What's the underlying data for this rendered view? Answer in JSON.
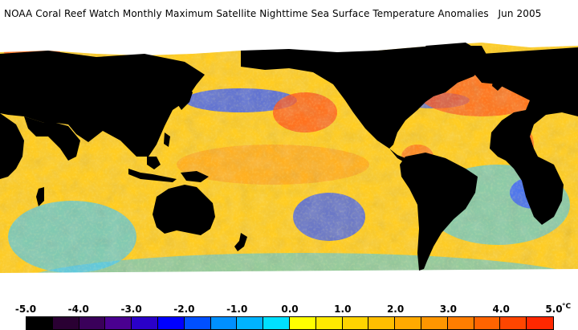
{
  "title": "NOAA Coral Reef Watch Monthly Maximum Satellite Nighttime Sea Surface Temperature Anomalies",
  "date": "Jun 2005",
  "legend": {
    "ticks": [
      "-5.0",
      "-4.0",
      "-3.0",
      "-2.0",
      "-1.0",
      "0.0",
      "1.0",
      "2.0",
      "3.0",
      "4.0",
      "5.0"
    ],
    "unit": "°C",
    "colors": [
      "#000000",
      "#2a0033",
      "#3a005a",
      "#4a0090",
      "#2a00c8",
      "#0000ff",
      "#0050ff",
      "#0090ff",
      "#00b4ff",
      "#00e0ff",
      "#ffff00",
      "#ffea00",
      "#ffd400",
      "#ffbe00",
      "#ffaa00",
      "#ff9600",
      "#ff7e00",
      "#ff6400",
      "#ff4600",
      "#ff2800"
    ]
  },
  "map_colors": {
    "ocean_base": "#ffcc22",
    "land": "#000000",
    "ice": "#ffffff",
    "warm": "#ff5a1e",
    "cool": "#3a5cff",
    "cyan": "#3ec8ff"
  }
}
